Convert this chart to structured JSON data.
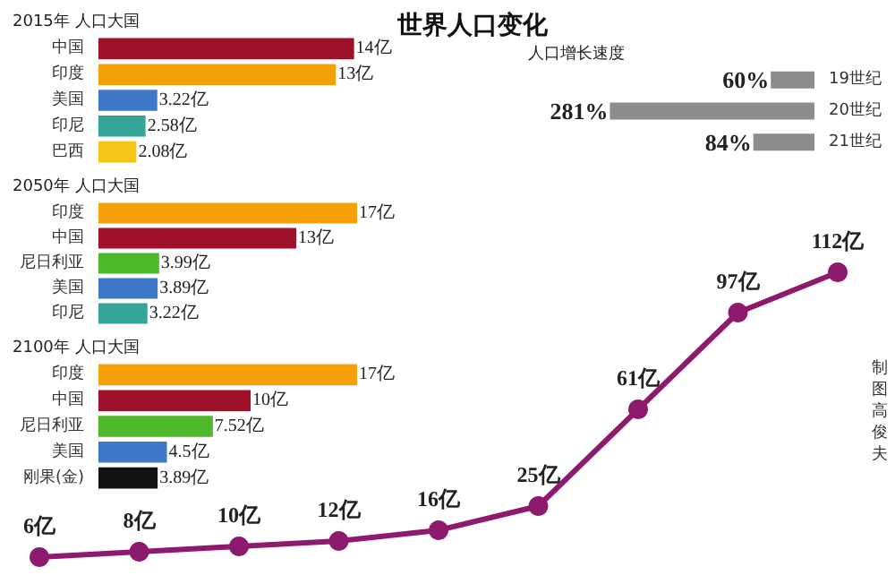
{
  "chart_data": [
    {
      "type": "bar",
      "orientation": "horizontal",
      "title": "2015年 人口大国",
      "categories": [
        "中国",
        "印度",
        "美国",
        "印尼",
        "巴西"
      ],
      "values": [
        14,
        13,
        3.22,
        2.58,
        2.08
      ],
      "colors": [
        "#a0102a",
        "#f5a20a",
        "#3f78c8",
        "#35a59a",
        "#f5c518"
      ],
      "value_labels": [
        "14亿",
        "13亿",
        "3.22亿",
        "2.58亿",
        "2.08亿"
      ]
    },
    {
      "type": "bar",
      "orientation": "horizontal",
      "title": "2050年 人口大国",
      "categories": [
        "印度",
        "中国",
        "尼日利亚",
        "美国",
        "印尼"
      ],
      "values": [
        17,
        13,
        3.99,
        3.89,
        3.22
      ],
      "colors": [
        "#f5a20a",
        "#a0102a",
        "#4db82a",
        "#3f78c8",
        "#35a59a"
      ],
      "value_labels": [
        "17亿",
        "13亿",
        "3.99亿",
        "3.89亿",
        "3.22亿"
      ]
    },
    {
      "type": "bar",
      "orientation": "horizontal",
      "title": "2100年 人口大国",
      "categories": [
        "印度",
        "中国",
        "尼日利亚",
        "美国",
        "刚果(金)"
      ],
      "values": [
        17,
        10,
        7.52,
        4.5,
        3.89
      ],
      "colors": [
        "#f5a20a",
        "#a0102a",
        "#4db82a",
        "#3f78c8",
        "#111111"
      ],
      "value_labels": [
        "17亿",
        "10亿",
        "7.52亿",
        "4.5亿",
        "3.89亿"
      ]
    },
    {
      "type": "bar",
      "orientation": "horizontal",
      "title": "世界人口变化",
      "subtitle": "人口增长速度",
      "categories": [
        "19世纪",
        "20世纪",
        "21世纪"
      ],
      "values": [
        60,
        281,
        84
      ],
      "colors": [
        "#8c8c8c",
        "#8c8c8c",
        "#8c8c8c"
      ],
      "value_labels": [
        "60%",
        "281%",
        "84%"
      ]
    },
    {
      "type": "line",
      "categories": [
        null,
        null,
        null,
        null,
        null,
        null,
        null,
        null,
        null
      ],
      "values": [
        6,
        8,
        10,
        12,
        16,
        25,
        61,
        97,
        112
      ],
      "color": "#8e1a6e",
      "marker": "circle",
      "value_labels": [
        "6亿",
        "8亿",
        "10亿",
        "12亿",
        "16亿",
        "25亿",
        "61亿",
        "97亿",
        "112亿"
      ],
      "annotations": [
        "制图高俊夫"
      ]
    }
  ]
}
